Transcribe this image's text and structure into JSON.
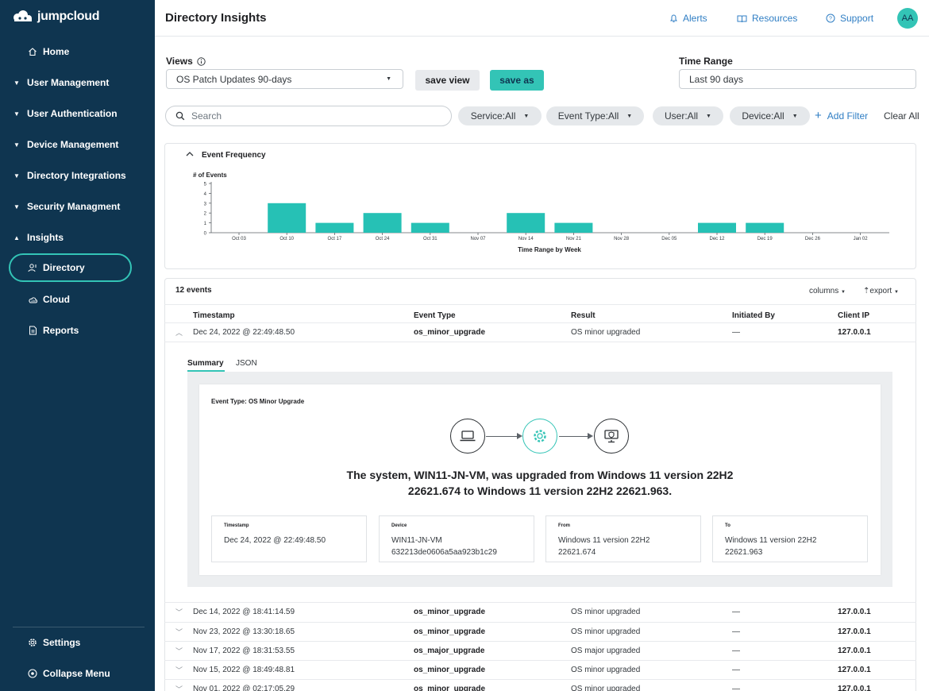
{
  "brand": {
    "name": "jumpcloud"
  },
  "sidebar": {
    "items": [
      {
        "label": "Home",
        "icon": "home-icon"
      },
      {
        "label": "User Management"
      },
      {
        "label": "User Authentication"
      },
      {
        "label": "Device Management"
      },
      {
        "label": "Directory Integrations"
      },
      {
        "label": "Security Managment"
      },
      {
        "label": "Insights"
      },
      {
        "label": "Directory",
        "icon": "directory-icon",
        "active": true
      },
      {
        "label": "Cloud",
        "icon": "cloud-icon"
      },
      {
        "label": "Reports",
        "icon": "reports-icon"
      }
    ],
    "footer": {
      "settings": "Settings",
      "collapse": "Collapse Menu"
    }
  },
  "header": {
    "title": "Directory Insights",
    "alerts": "Alerts",
    "resources": "Resources",
    "support": "Support",
    "avatar": "AA"
  },
  "views": {
    "label": "Views",
    "selected": "OS Patch Updates 90-days",
    "save_view": "save view",
    "save_as": "save as"
  },
  "time_range": {
    "label": "Time Range",
    "selected": "Last 90 days"
  },
  "filters": {
    "search_placeholder": "Search",
    "chips": [
      "Service:All",
      "Event Type:All",
      "User:All",
      "Device:All"
    ],
    "add_filter": "Add Filter",
    "clear_all": "Clear All"
  },
  "chart_panel": {
    "title": "Event Frequency"
  },
  "chart_data": {
    "type": "bar",
    "title": "",
    "ylabel": "# of Events",
    "xlabel": "Time Range by Week",
    "ylim": [
      0,
      5
    ],
    "yticks": [
      0,
      1,
      2,
      3,
      4,
      5
    ],
    "categories": [
      "Oct 03",
      "Oct 10",
      "Oct 17",
      "Oct 24",
      "Oct 31",
      "Nov 07",
      "Nov 14",
      "Nov 21",
      "Nov 28",
      "Dec 05",
      "Dec 12",
      "Dec 19",
      "Dec 26",
      "Jan 02"
    ],
    "values": [
      0,
      3,
      1,
      2,
      1,
      0,
      2,
      1,
      0,
      0,
      1,
      1,
      0,
      0
    ],
    "color": "#26c1b5"
  },
  "table": {
    "count": "12 events",
    "columns_btn": "columns",
    "export_btn": "export",
    "headers": [
      "Timestamp",
      "Event Type",
      "Result",
      "Initiated By",
      "Client IP"
    ],
    "expanded_row": [
      "Dec 24, 2022 @ 22:49:48.50",
      "os_minor_upgrade",
      "OS minor upgraded",
      "—",
      "127.0.0.1"
    ],
    "rows": [
      [
        "Dec 14, 2022 @ 18:41:14.59",
        "os_minor_upgrade",
        "OS minor upgraded",
        "—",
        "127.0.0.1"
      ],
      [
        "Nov 23, 2022 @ 13:30:18.65",
        "os_minor_upgrade",
        "OS minor upgraded",
        "—",
        "127.0.0.1"
      ],
      [
        "Nov 17, 2022 @ 18:31:53.55",
        "os_major_upgrade",
        "OS major upgraded",
        "—",
        "127.0.0.1"
      ],
      [
        "Nov 15, 2022 @ 18:49:48.81",
        "os_minor_upgrade",
        "OS minor upgraded",
        "—",
        "127.0.0.1"
      ],
      [
        "Nov 01, 2022 @ 02:17:05.29",
        "os_minor_upgrade",
        "OS minor upgraded",
        "—",
        "127.0.0.1"
      ]
    ]
  },
  "detail": {
    "tabs": [
      "Summary",
      "JSON"
    ],
    "event_type": "Event Type: OS Minor Upgrade",
    "sentence_line1": "The system, WIN11-JN-VM, was upgraded from Windows 11 version 22H2",
    "sentence_line2": "22621.674 to Windows 11 version 22H2 22621.963.",
    "boxes": [
      {
        "title": "Timestamp",
        "line1": "Dec 24, 2022 @ 22:49:48.50",
        "line2": ""
      },
      {
        "title": "Device",
        "line1": "WIN11-JN-VM",
        "line2": "632213de0606a5aa923b1c29"
      },
      {
        "title": "From",
        "line1": "Windows 11 version 22H2",
        "line2": "22621.674"
      },
      {
        "title": "To",
        "line1": "Windows 11 version 22H2",
        "line2": "22621.963"
      }
    ]
  }
}
